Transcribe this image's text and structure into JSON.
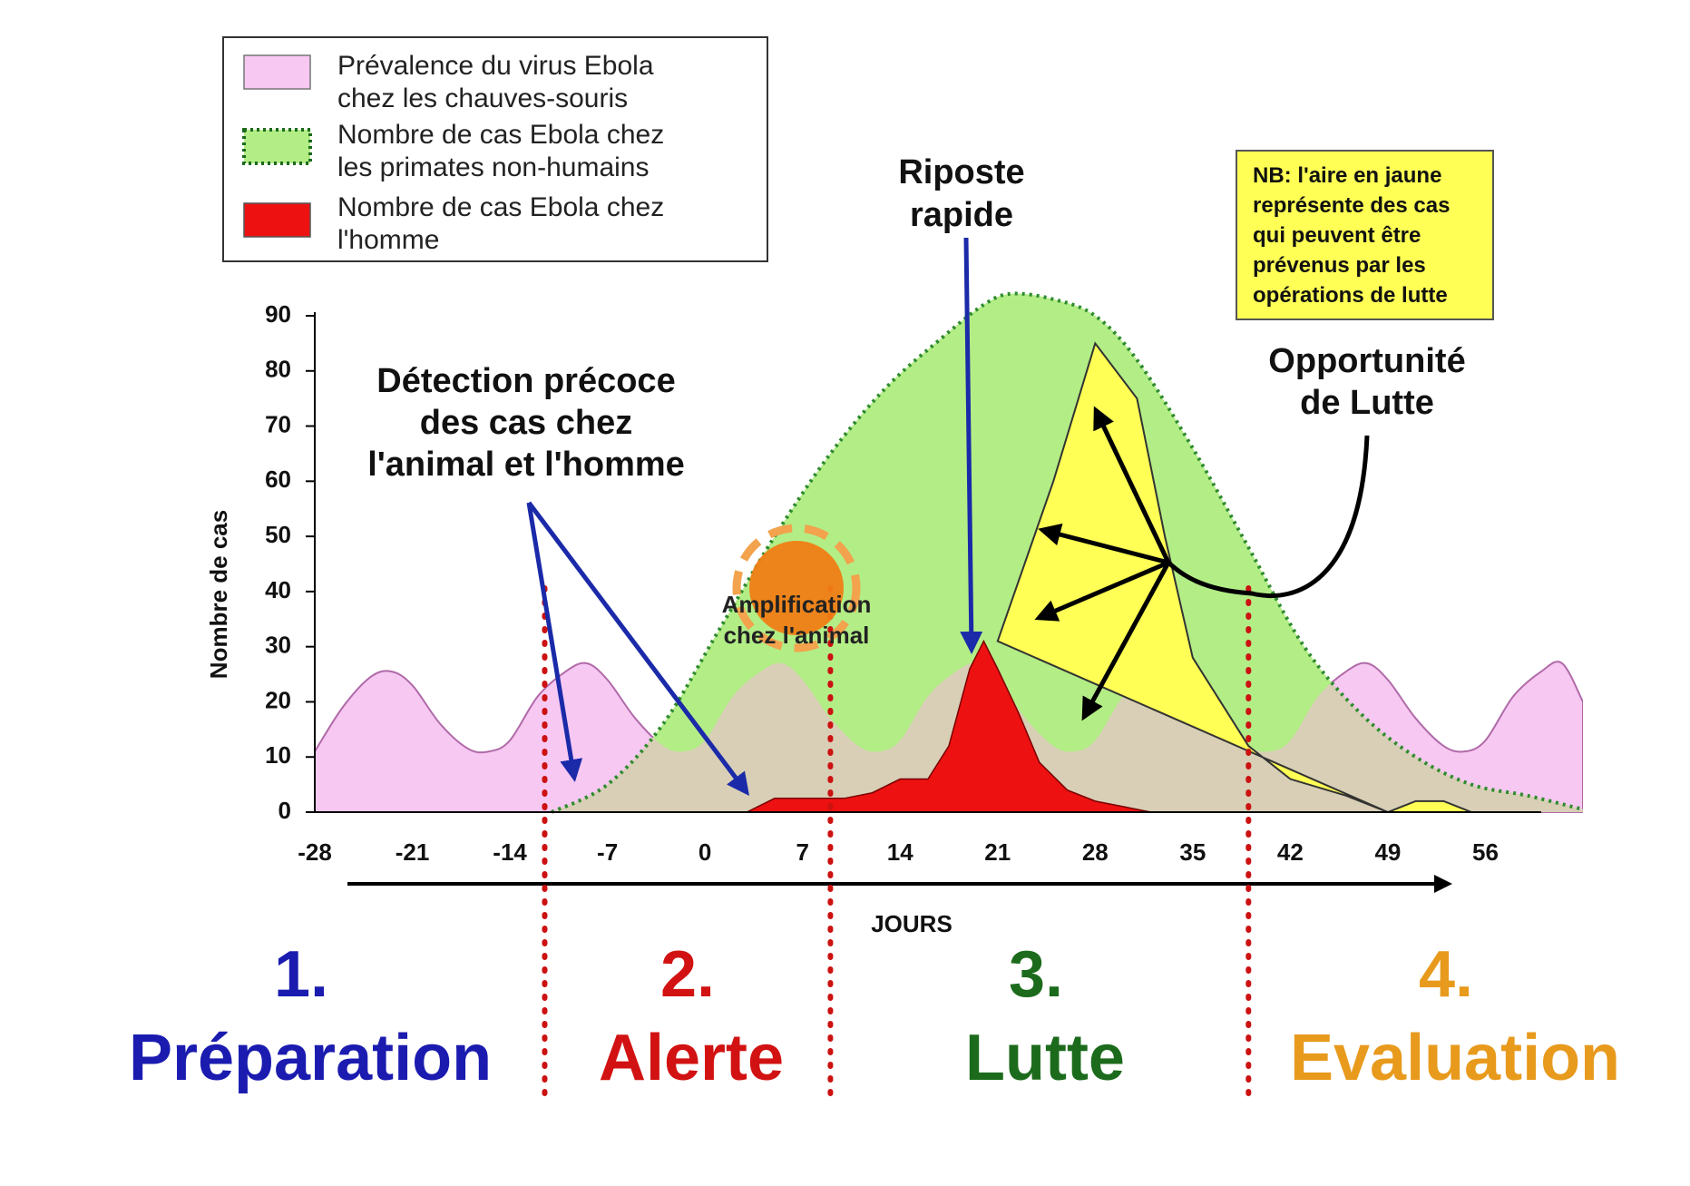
{
  "chart_data": {
    "type": "area",
    "ylabel": "Nombre de cas",
    "xlabel": "JOURS",
    "xlim": [
      -28,
      63
    ],
    "ylim": [
      0,
      90
    ],
    "y_ticks": [
      0,
      10,
      20,
      30,
      40,
      50,
      60,
      70,
      80,
      90
    ],
    "x_ticks": [
      -28,
      -21,
      -14,
      -7,
      0,
      7,
      14,
      21,
      28,
      35,
      42,
      49,
      56
    ],
    "legend_position": "top-left",
    "legend": [
      {
        "label_line1": "Prévalence du virus Ebola",
        "label_line2": "chez les chauves-souris",
        "color": "#f6c8f2"
      },
      {
        "label_line1": "Nombre de cas Ebola chez",
        "label_line2": "les primates non-humains",
        "color": "#b3ed86"
      },
      {
        "label_line1": "Nombre de cas Ebola chez",
        "label_line2": "l'homme",
        "color": "#ee1111"
      }
    ],
    "series": [
      {
        "name": "bats",
        "color": "#f6c8f2",
        "x": [
          -28,
          -26,
          -24,
          -22.5,
          -21,
          -19,
          -17,
          -15.5,
          -14,
          -12,
          -10,
          -8.5,
          -7,
          -5,
          -3,
          -1.5,
          0,
          2,
          4,
          5.5,
          7,
          9,
          11,
          12.5,
          14,
          16,
          18,
          19.5,
          21,
          23,
          25,
          26.5,
          28,
          30,
          32,
          33.5,
          35,
          37,
          39,
          40.5,
          42,
          44,
          46,
          47.5,
          49,
          51,
          53,
          54.5,
          56,
          58,
          60,
          61.5,
          63
        ],
        "y": [
          11,
          19,
          24.5,
          25.5,
          23,
          16,
          11.5,
          11,
          13,
          21,
          25.5,
          27,
          24,
          17,
          12,
          11,
          13,
          21,
          25.5,
          27,
          24,
          17,
          12,
          11,
          13,
          21,
          25.5,
          27,
          24,
          17,
          12,
          11,
          13,
          21,
          25.5,
          27,
          24,
          17,
          12,
          11,
          13,
          21,
          25.5,
          27,
          24,
          17,
          12,
          11,
          13,
          21,
          25.5,
          27,
          20
        ]
      },
      {
        "name": "primates",
        "color": "#b3ed86",
        "x": [
          -11,
          -7,
          -3,
          1,
          5,
          9,
          13,
          17,
          20,
          22,
          25,
          28,
          31,
          35,
          39,
          43,
          47,
          51,
          55,
          59,
          63
        ],
        "y": [
          0,
          5,
          16,
          33,
          50,
          65,
          77,
          86,
          92,
          94,
          93,
          90,
          82,
          66,
          48,
          30,
          18,
          10,
          5,
          3,
          0.5
        ]
      },
      {
        "name": "preventable",
        "color": "#ffff55",
        "x": [
          21,
          25,
          28,
          31,
          33,
          35,
          37,
          39,
          42,
          46,
          49,
          51,
          53,
          55,
          56,
          49
        ],
        "y": [
          31,
          60,
          85,
          75,
          50,
          28,
          20,
          12,
          6,
          3,
          0,
          2,
          2,
          0,
          0,
          0
        ]
      },
      {
        "name": "humans",
        "color": "#ee1111",
        "x": [
          3,
          5,
          8,
          10,
          12,
          14,
          16,
          17.5,
          19,
          20,
          21,
          22.5,
          24,
          26,
          28,
          30,
          32
        ],
        "y": [
          0,
          2.5,
          2.5,
          2.5,
          3.5,
          6,
          6,
          12,
          26,
          31,
          26,
          18,
          9,
          4,
          2,
          1,
          0
        ]
      }
    ],
    "annotations": {
      "detection_line1": "Détection précoce",
      "detection_line2": "des cas chez",
      "detection_line3": "l'animal et l'homme",
      "riposte_line1": "Riposte",
      "riposte_line2": "rapide",
      "amplification_line1": "Amplification",
      "amplification_line2": "chez l'animal",
      "opportunity_line1": "Opportunité",
      "opportunity_line2": "de Lutte",
      "nb_lines": [
        "NB: l'aire en jaune",
        "représente des cas",
        "qui peuvent être",
        "prévenus par les",
        "opérations de lutte"
      ]
    },
    "phase_boundaries_days": [
      -11.5,
      9,
      39
    ],
    "phases": [
      {
        "number": "1.",
        "name": "Préparation",
        "color": "#1b1bb0"
      },
      {
        "number": "2.",
        "name": "Alerte",
        "color": "#d21212"
      },
      {
        "number": "3.",
        "name": "Lutte",
        "color": "#1c6b1c"
      },
      {
        "number": "4.",
        "name": "Evaluation",
        "color": "#e89a1d"
      }
    ]
  },
  "colors": {
    "beige_overlap": "#d8cfb6",
    "primates_border": "#2e8b2e",
    "phase_divider": "#cc1111",
    "arrow_blue": "#1a2aa8",
    "sun": "#f07e15",
    "nb_box": "#ffff55"
  }
}
